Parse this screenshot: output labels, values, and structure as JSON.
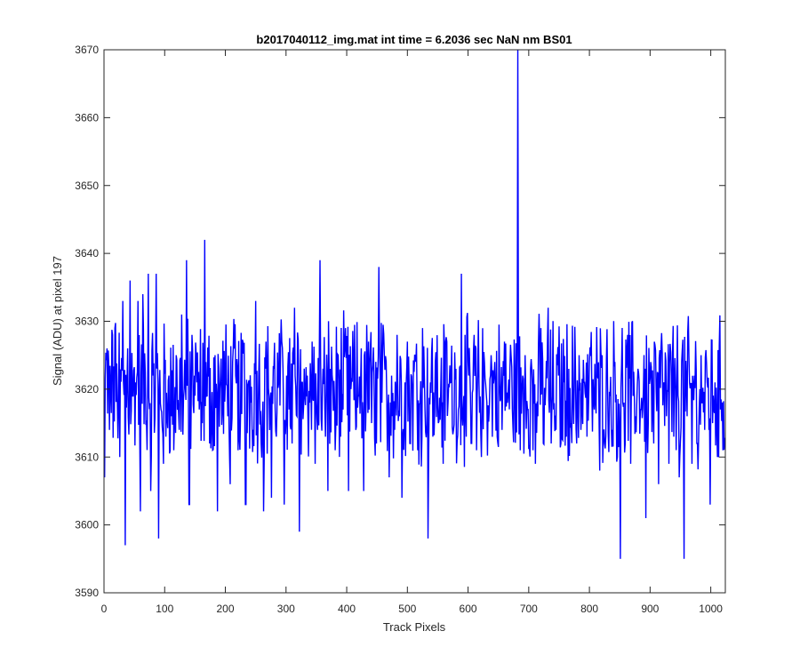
{
  "chart_data": {
    "type": "line",
    "title": "b2017040112_img.mat int time = 6.2036 sec  NaN nm BS01",
    "xlabel": "Track Pixels",
    "ylabel": "Signal (ADU) at pixel 197",
    "xlim": [
      0,
      1024
    ],
    "ylim": [
      3590,
      3670
    ],
    "xticks": [
      0,
      100,
      200,
      300,
      400,
      500,
      600,
      700,
      800,
      900,
      1000
    ],
    "yticks": [
      3590,
      3600,
      3610,
      3620,
      3630,
      3640,
      3650,
      3660,
      3670
    ],
    "grid": false,
    "line_color": "#0000ff",
    "series": [
      {
        "x_start": 1,
        "x_step": 1,
        "noise_mean": 3620,
        "noise_range": [
          3595,
          3642
        ],
        "values_sampled": [
          3607,
          3626,
          3614,
          3628,
          3629,
          3618,
          3610,
          3633,
          3597,
          3626,
          3636,
          3619,
          3621,
          3633,
          3602,
          3634,
          3615,
          3637,
          3605,
          3622,
          3637,
          3598,
          3617,
          3609,
          3613,
          3622,
          3616,
          3611,
          3625,
          3614,
          3631,
          3620,
          3639,
          3603,
          3628,
          3622,
          3621,
          3617,
          3615,
          3642,
          3619,
          3612,
          3611,
          3625,
          3602,
          3620,
          3617,
          3621,
          3616,
          3606,
          3624,
          3622,
          3611,
          3616,
          3627,
          3603,
          3621,
          3618,
          3614,
          3633,
          3622,
          3612,
          3602,
          3627,
          3619,
          3604,
          3623,
          3613,
          3621,
          3627,
          3603,
          3622,
          3617,
          3612,
          3632,
          3616,
          3599,
          3621,
          3619,
          3622,
          3618,
          3627,
          3609,
          3614,
          3639,
          3620,
          3613,
          3605,
          3623,
          3621,
          3611,
          3625,
          3613,
          3617,
          3629,
          3605,
          3620,
          3624,
          3614,
          3619,
          3626,
          3605,
          3618,
          3627,
          3615,
          3622,
          3612,
          3638,
          3618,
          3625,
          3619,
          3607,
          3622,
          3614,
          3628,
          3616,
          3604,
          3621,
          3627,
          3612,
          3620,
          3625,
          3611,
          3618,
          3629,
          3617,
          3598,
          3621,
          3613,
          3624,
          3615,
          3620,
          3609,
          3627,
          3618,
          3621,
          3614,
          3623,
          3617,
          3637,
          3619,
          3613,
          3622,
          3612,
          3628,
          3611,
          3621,
          3610,
          3624,
          3618,
          3617,
          3623,
          3624,
          3613,
          3621,
          3614,
          3627,
          3618,
          3623,
          3617,
          3621,
          3670,
          3611,
          3622,
          3625,
          3617,
          3623,
          3611,
          3609,
          3616,
          3629,
          3612,
          3620,
          3632,
          3612,
          3617,
          3614,
          3622,
          3612,
          3621,
          3613,
          3623,
          3615,
          3620,
          3612,
          3625,
          3617,
          3621,
          3613,
          3624,
          3620,
          3617,
          3622,
          3608,
          3625,
          3612,
          3620,
          3619,
          3614,
          3624,
          3610,
          3595,
          3618,
          3612,
          3628,
          3609,
          3619,
          3616,
          3623,
          3617,
          3620,
          3601,
          3615,
          3624,
          3612,
          3620,
          3606,
          3626,
          3621,
          3616,
          3609,
          3622,
          3613,
          3621,
          3607,
          3624,
          3595,
          3616,
          3621,
          3609,
          3622,
          3612,
          3620,
          3618,
          3614,
          3621,
          3603,
          3615,
          3621,
          3610,
          3617,
          3611,
          3612
        ]
      }
    ]
  }
}
